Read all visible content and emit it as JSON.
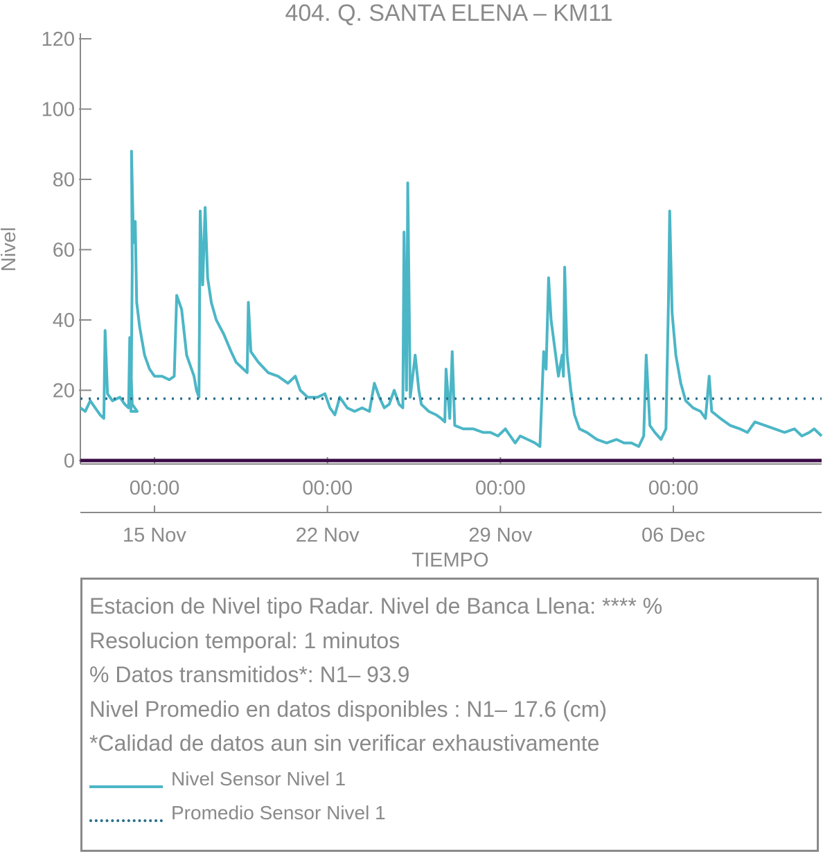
{
  "chart_data": {
    "type": "line",
    "title": "404. Q. SANTA ELENA – KM11",
    "xlabel": "TIEMPO",
    "ylabel": "Nivel",
    "ylim": [
      0,
      120
    ],
    "yticks": [
      "0",
      "20",
      "40",
      "60",
      "80",
      "100",
      "120"
    ],
    "xlim_days": [
      -3.0,
      27.0
    ],
    "xticks": [
      {
        "time": "00:00",
        "date": "15 Nov"
      },
      {
        "time": "00:00",
        "date": "22 Nov"
      },
      {
        "time": "00:00",
        "date": "29 Nov"
      },
      {
        "time": "00:00",
        "date": "06 Dec"
      }
    ],
    "grid": false,
    "colors": {
      "level": "#4bb6c6",
      "mean": "#2a6f8a",
      "baseline": "#3a0a46",
      "text": "#8a8a8a"
    },
    "series": [
      {
        "name": "Nivel Sensor Nivel 1",
        "style": "solid",
        "points": [
          [
            -3.0,
            15
          ],
          [
            -2.8,
            14
          ],
          [
            -2.6,
            17
          ],
          [
            -2.4,
            15
          ],
          [
            -2.2,
            13
          ],
          [
            -2.05,
            12
          ],
          [
            -2.0,
            37
          ],
          [
            -1.9,
            19
          ],
          [
            -1.7,
            17
          ],
          [
            -1.4,
            18
          ],
          [
            -1.2,
            16
          ],
          [
            -1.05,
            15
          ],
          [
            -1.0,
            35
          ],
          [
            -0.9,
            16
          ],
          [
            -0.8,
            15
          ],
          [
            -0.7,
            14
          ],
          [
            -0.95,
            14
          ],
          [
            -0.9,
            55
          ],
          [
            -0.93,
            88
          ],
          [
            -0.85,
            62
          ],
          [
            -0.78,
            68
          ],
          [
            -0.72,
            45
          ],
          [
            -0.6,
            38
          ],
          [
            -0.4,
            30
          ],
          [
            -0.2,
            26
          ],
          [
            0.0,
            24
          ],
          [
            0.3,
            24
          ],
          [
            0.6,
            23
          ],
          [
            0.8,
            24
          ],
          [
            0.9,
            47
          ],
          [
            1.1,
            43
          ],
          [
            1.3,
            30
          ],
          [
            1.6,
            24
          ],
          [
            1.7,
            20
          ],
          [
            1.8,
            18
          ],
          [
            1.85,
            71
          ],
          [
            1.95,
            50
          ],
          [
            2.05,
            72
          ],
          [
            2.15,
            52
          ],
          [
            2.3,
            45
          ],
          [
            2.5,
            40
          ],
          [
            2.8,
            36
          ],
          [
            3.1,
            31
          ],
          [
            3.3,
            28
          ],
          [
            3.6,
            26
          ],
          [
            3.75,
            25
          ],
          [
            3.8,
            45
          ],
          [
            3.9,
            31
          ],
          [
            4.2,
            28
          ],
          [
            4.6,
            25
          ],
          [
            5.0,
            24
          ],
          [
            5.4,
            22
          ],
          [
            5.7,
            24
          ],
          [
            5.9,
            20
          ],
          [
            6.2,
            18
          ],
          [
            6.6,
            18
          ],
          [
            6.9,
            19
          ],
          [
            7.1,
            15
          ],
          [
            7.3,
            13
          ],
          [
            7.5,
            18
          ],
          [
            7.8,
            15
          ],
          [
            8.1,
            14
          ],
          [
            8.4,
            15
          ],
          [
            8.7,
            14
          ],
          [
            8.9,
            22
          ],
          [
            9.1,
            18
          ],
          [
            9.3,
            15
          ],
          [
            9.5,
            16
          ],
          [
            9.7,
            20
          ],
          [
            9.9,
            16
          ],
          [
            10.05,
            15
          ],
          [
            10.1,
            65
          ],
          [
            10.2,
            20
          ],
          [
            10.25,
            79
          ],
          [
            10.35,
            18
          ],
          [
            10.55,
            30
          ],
          [
            10.7,
            20
          ],
          [
            10.8,
            16
          ],
          [
            11.1,
            14
          ],
          [
            11.4,
            13
          ],
          [
            11.6,
            12
          ],
          [
            11.75,
            11
          ],
          [
            11.8,
            26
          ],
          [
            11.95,
            12
          ],
          [
            12.05,
            31
          ],
          [
            12.15,
            10
          ],
          [
            12.5,
            9
          ],
          [
            12.9,
            9
          ],
          [
            13.3,
            8
          ],
          [
            13.6,
            8
          ],
          [
            13.9,
            7
          ],
          [
            14.2,
            9
          ],
          [
            14.4,
            7
          ],
          [
            14.6,
            5
          ],
          [
            14.8,
            7
          ],
          [
            15.1,
            6
          ],
          [
            15.4,
            5
          ],
          [
            15.6,
            4
          ],
          [
            15.75,
            31
          ],
          [
            15.85,
            26
          ],
          [
            15.95,
            52
          ],
          [
            16.05,
            40
          ],
          [
            16.2,
            32
          ],
          [
            16.35,
            24
          ],
          [
            16.5,
            30
          ],
          [
            16.55,
            24
          ],
          [
            16.6,
            55
          ],
          [
            16.7,
            30
          ],
          [
            16.85,
            20
          ],
          [
            17.0,
            13
          ],
          [
            17.2,
            9
          ],
          [
            17.5,
            8
          ],
          [
            17.9,
            6
          ],
          [
            18.3,
            5
          ],
          [
            18.7,
            6
          ],
          [
            19.0,
            5
          ],
          [
            19.3,
            5
          ],
          [
            19.6,
            4
          ],
          [
            19.8,
            7
          ],
          [
            19.9,
            30
          ],
          [
            20.05,
            10
          ],
          [
            20.25,
            8
          ],
          [
            20.5,
            6
          ],
          [
            20.7,
            9
          ],
          [
            20.8,
            45
          ],
          [
            20.85,
            71
          ],
          [
            20.95,
            42
          ],
          [
            21.1,
            30
          ],
          [
            21.3,
            22
          ],
          [
            21.5,
            17
          ],
          [
            21.8,
            15
          ],
          [
            22.1,
            14
          ],
          [
            22.3,
            12
          ],
          [
            22.45,
            24
          ],
          [
            22.55,
            14
          ],
          [
            22.9,
            12
          ],
          [
            23.3,
            10
          ],
          [
            23.7,
            9
          ],
          [
            24.0,
            8
          ],
          [
            24.3,
            11
          ],
          [
            24.7,
            10
          ],
          [
            25.1,
            9
          ],
          [
            25.5,
            8
          ],
          [
            25.9,
            9
          ],
          [
            26.2,
            7
          ],
          [
            26.5,
            8
          ],
          [
            26.7,
            9
          ],
          [
            27.0,
            7
          ]
        ]
      },
      {
        "name": "Promedio Sensor Nivel 1",
        "style": "dotted",
        "value": 17.6
      }
    ]
  },
  "info": {
    "lines": [
      "Estacion de Nivel tipo Radar. Nivel de Banca Llena: **** %",
      "Resolucion temporal: 1 minutos",
      "% Datos transmitidos*: N1– 93.9",
      "Nivel Promedio en datos disponibles : N1– 17.6 (cm)",
      "*Calidad de datos aun sin verificar exhaustivamente"
    ],
    "legend": [
      "Nivel Sensor Nivel 1",
      "Promedio Sensor Nivel 1"
    ]
  }
}
